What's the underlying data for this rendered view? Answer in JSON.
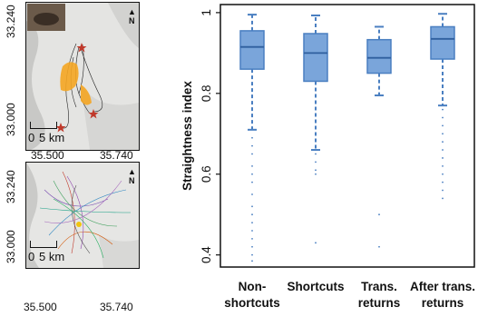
{
  "maps": {
    "top": {
      "y_ticks": [
        "33.240",
        "33.000"
      ],
      "x_ticks": [
        "35.500",
        "35.740"
      ],
      "scale_zero": "0",
      "scale_label": "5 km",
      "north_label": "N"
    },
    "bottom": {
      "y_ticks": [
        "33.240",
        "33.000"
      ],
      "x_ticks": [
        "35.500",
        "35.740"
      ],
      "scale_zero": "0",
      "scale_label": "5 km",
      "north_label": "N"
    },
    "colors": {
      "tracks": "#222222",
      "highlight": "#f5a623",
      "markers": "#c0392b"
    }
  },
  "chart_data": {
    "type": "box",
    "ylabel": "Straightness index",
    "ylim": [
      0.37,
      1.02
    ],
    "y_ticks": [
      0.4,
      0.6,
      0.8,
      1
    ],
    "y_tick_labels": [
      "0.4",
      "0.6",
      "0.8",
      "1"
    ],
    "categories": [
      {
        "label_lines": [
          "Non-",
          "shortcuts"
        ],
        "min": 0.71,
        "q1": 0.86,
        "median": 0.915,
        "q3": 0.955,
        "max": 0.995,
        "outliers": [
          0.69,
          0.67,
          0.65,
          0.62,
          0.6,
          0.58,
          0.55,
          0.52,
          0.5,
          0.48,
          0.46,
          0.44,
          0.42,
          0.4,
          0.385
        ]
      },
      {
        "label_lines": [
          "Shortcuts"
        ],
        "min": 0.66,
        "q1": 0.83,
        "median": 0.9,
        "q3": 0.948,
        "max": 0.993,
        "outliers": [
          0.65,
          0.63,
          0.61,
          0.6,
          0.43
        ]
      },
      {
        "label_lines": [
          "Trans.",
          "returns"
        ],
        "min": 0.795,
        "q1": 0.85,
        "median": 0.888,
        "q3": 0.933,
        "max": 0.965,
        "outliers": [
          0.5,
          0.42
        ]
      },
      {
        "label_lines": [
          "After trans.",
          "returns"
        ],
        "min": 0.77,
        "q1": 0.885,
        "median": 0.935,
        "q3": 0.965,
        "max": 0.997,
        "outliers": [
          0.76,
          0.74,
          0.72,
          0.7,
          0.68,
          0.66,
          0.64,
          0.62,
          0.6,
          0.58,
          0.56,
          0.54
        ]
      }
    ],
    "box_fill": "#7aa5da",
    "box_stroke": "#4a7fc1",
    "median_color": "#2f5f9e"
  }
}
